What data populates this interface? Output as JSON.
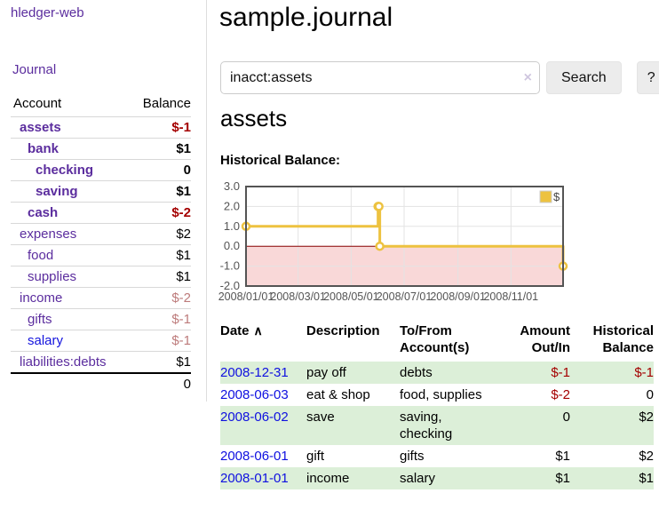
{
  "brand": {
    "title": "hledger-web"
  },
  "nav": {
    "journal": "Journal"
  },
  "sidebar": {
    "columns": {
      "account": "Account",
      "balance": "Balance"
    },
    "accounts": [
      {
        "name": "assets",
        "depth": 1,
        "bold": true,
        "link": "purple",
        "balance": "$-1",
        "tone": "neg"
      },
      {
        "name": "bank",
        "depth": 2,
        "bold": true,
        "link": "purple",
        "balance": "$1",
        "tone": ""
      },
      {
        "name": "checking",
        "depth": 3,
        "bold": true,
        "link": "purple",
        "balance": "0",
        "tone": ""
      },
      {
        "name": "saving",
        "depth": 3,
        "bold": true,
        "link": "purple",
        "balance": "$1",
        "tone": ""
      },
      {
        "name": "cash",
        "depth": 2,
        "bold": true,
        "link": "purple",
        "balance": "$-2",
        "tone": "neg"
      },
      {
        "name": "expenses",
        "depth": 1,
        "bold": false,
        "link": "purple",
        "balance": "$2",
        "tone": ""
      },
      {
        "name": "food",
        "depth": 2,
        "bold": false,
        "link": "purple",
        "balance": "$1",
        "tone": ""
      },
      {
        "name": "supplies",
        "depth": 2,
        "bold": false,
        "link": "purple",
        "balance": "$1",
        "tone": ""
      },
      {
        "name": "income",
        "depth": 1,
        "bold": false,
        "link": "purple",
        "balance": "$-2",
        "tone": "muted"
      },
      {
        "name": "gifts",
        "depth": 2,
        "bold": false,
        "link": "purple",
        "balance": "$-1",
        "tone": "muted"
      },
      {
        "name": "salary",
        "depth": 2,
        "bold": false,
        "link": "blue",
        "balance": "$-1",
        "tone": "muted"
      },
      {
        "name": "liabilities:debts",
        "depth": 1,
        "bold": false,
        "link": "purple",
        "balance": "$1",
        "tone": ""
      }
    ],
    "total": "0"
  },
  "main": {
    "title": "sample.journal",
    "search": {
      "value": "inacct:assets",
      "clear_icon": "×",
      "search_button": "Search",
      "help_button": "?"
    },
    "account_title": "assets",
    "chart_heading": "Historical Balance:"
  },
  "register": {
    "sort_arrow": "∧",
    "columns": {
      "date": "Date",
      "description": "Description",
      "accounts": "To/From Account(s)",
      "amount": "Amount Out/In",
      "balance": "Historical Balance"
    },
    "rows": [
      {
        "date": "2008-12-31",
        "description": "pay off",
        "accounts": "debts",
        "amount": "$-1",
        "balance": "$-1"
      },
      {
        "date": "2008-06-03",
        "description": "eat & shop",
        "accounts": "food, supplies",
        "amount": "$-2",
        "balance": "0"
      },
      {
        "date": "2008-06-02",
        "description": "save",
        "accounts": "saving, checking",
        "amount": "0",
        "balance": "$2"
      },
      {
        "date": "2008-06-01",
        "description": "gift",
        "accounts": "gifts",
        "amount": "$1",
        "balance": "$2"
      },
      {
        "date": "2008-01-01",
        "description": "income",
        "accounts": "salary",
        "amount": "$1",
        "balance": "$1"
      }
    ]
  },
  "chart_data": {
    "type": "line",
    "title": "Historical Balance:",
    "steps": true,
    "legend_label": "$",
    "legend_position": "top-right",
    "grid": true,
    "x_type": "date",
    "xlim": [
      "2008/01/01",
      "2008/12/31"
    ],
    "ylim": [
      -2.0,
      3.0
    ],
    "yticks": [
      "3.0",
      "2.0",
      "1.0",
      "0.0",
      "-1.0",
      "-2.0"
    ],
    "xticks": [
      "2008/01/01",
      "2008/03/01",
      "2008/05/01",
      "2008/07/01",
      "2008/09/01",
      "2008/11/01"
    ],
    "series": [
      {
        "name": "$",
        "color": "#edc240",
        "points": [
          [
            "2008/01/01",
            1
          ],
          [
            "2008/06/01",
            2
          ],
          [
            "2008/06/02",
            2
          ],
          [
            "2008/06/03",
            0
          ],
          [
            "2008/12/31",
            -1
          ]
        ]
      }
    ],
    "negative_region_color": "#f9d8d8",
    "zero_line_color": "#8b0000",
    "grid_color": "#e3e3e3",
    "border_color": "#545454",
    "tick_label_color": "#545454"
  },
  "colors": {
    "link_purple": "#5b2d9e",
    "link_blue": "#1414dd",
    "date_link_blue": "#0f10e0",
    "negative": "#a40000",
    "negative_muted": "#bd7b7b",
    "row_green": "#dcefd8",
    "chart_line": "#edc240"
  }
}
